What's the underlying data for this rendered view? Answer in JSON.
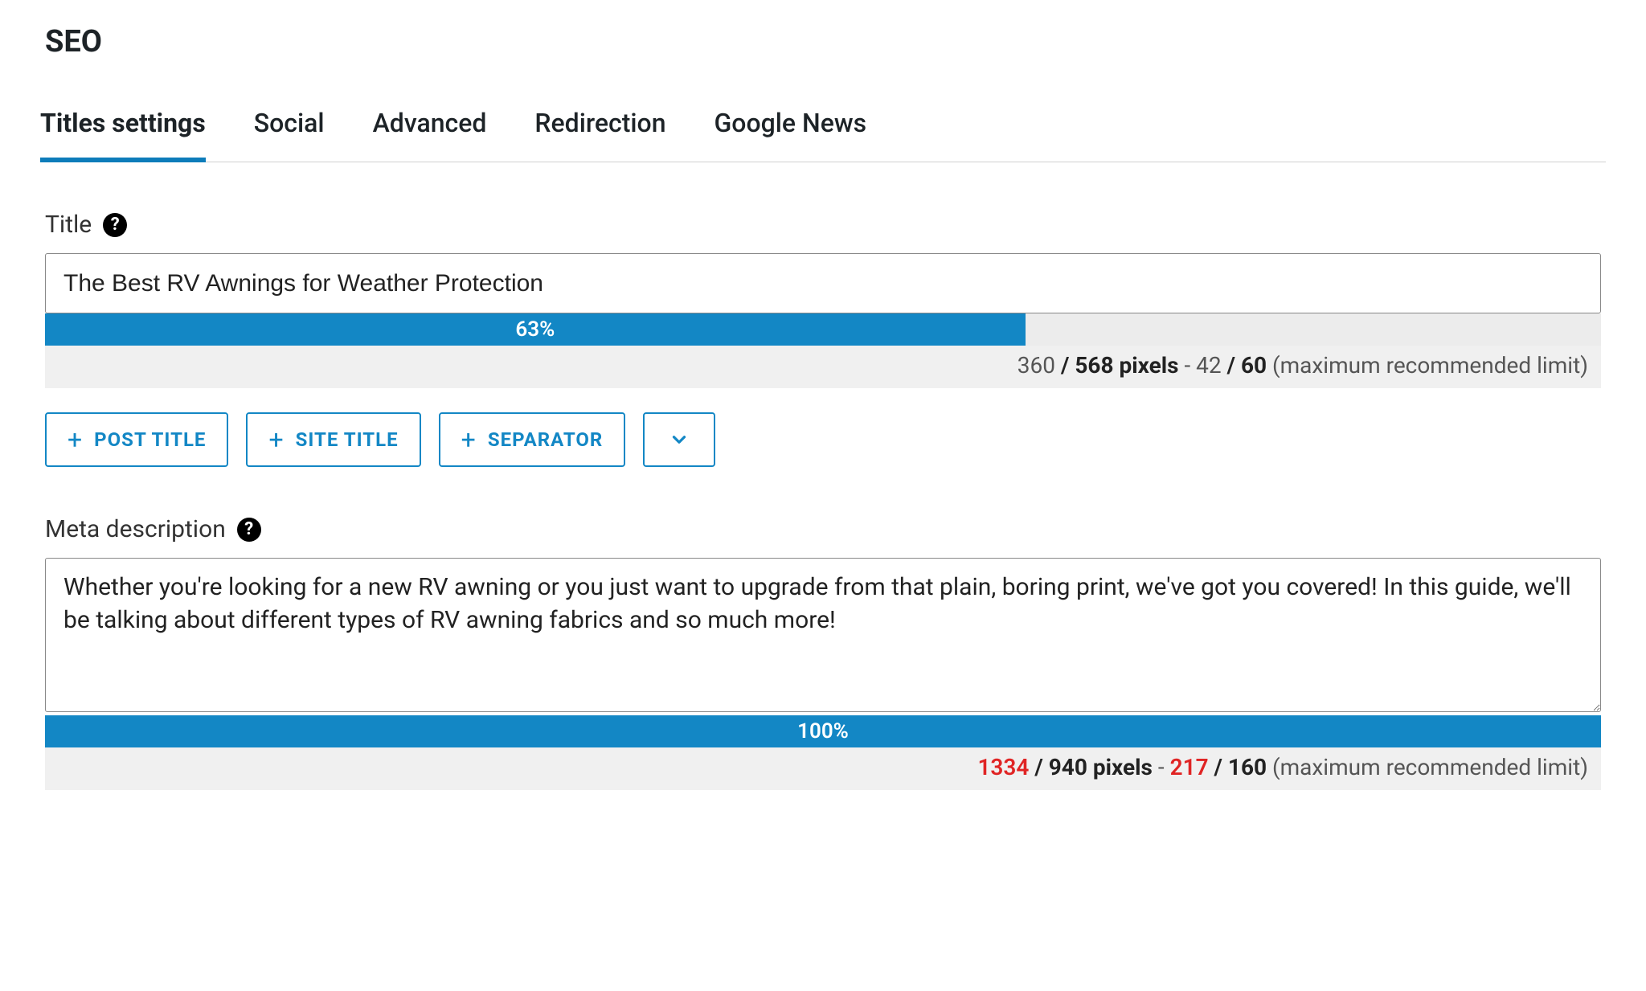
{
  "colors": {
    "accent": "#1387c5",
    "tab_active_border": "#0d7cba",
    "danger": "#e02424",
    "progress_bg": "#ececec",
    "panel_bg": "#f0f0f0",
    "border": "#888888",
    "text": "#1d2327"
  },
  "page": {
    "title": "SEO"
  },
  "tabs": [
    {
      "label": "Titles settings",
      "active": true
    },
    {
      "label": "Social",
      "active": false
    },
    {
      "label": "Advanced",
      "active": false
    },
    {
      "label": "Redirection",
      "active": false
    },
    {
      "label": "Google News",
      "active": false
    }
  ],
  "title_field": {
    "label": "Title",
    "help": "?",
    "value": "The Best RV Awnings for Weather Protection",
    "progress_percent": 63,
    "progress_label": "63%",
    "px_current": "360",
    "px_max": "568",
    "px_unit": "pixels",
    "char_current": "42",
    "char_max": "60",
    "limit_note": "(maximum recommended limit)",
    "chips": [
      {
        "label": "POST TITLE"
      },
      {
        "label": "SITE TITLE"
      },
      {
        "label": "SEPARATOR"
      }
    ]
  },
  "meta_field": {
    "label": "Meta description",
    "help": "?",
    "value": "Whether you're looking for a new RV awning or you just want to upgrade from that plain, boring print, we've got you covered! In this guide, we'll be talking about different types of RV awning fabrics and so much more!",
    "progress_percent": 100,
    "progress_label": "100%",
    "px_current": "1334",
    "px_max": "940",
    "px_unit": "pixels",
    "char_current": "217",
    "char_max": "160",
    "limit_note": "(maximum recommended limit)",
    "over_limit": true
  }
}
